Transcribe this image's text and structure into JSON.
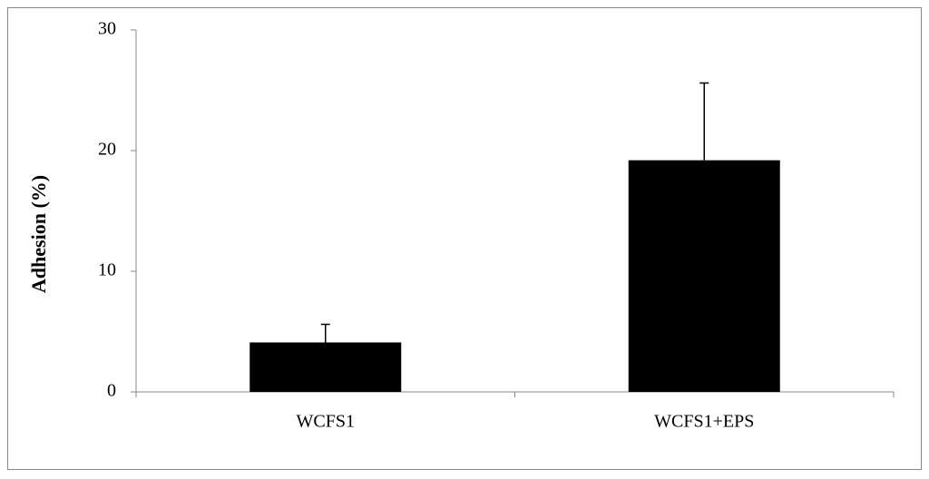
{
  "chart_data": {
    "type": "bar",
    "y_label": "Adhesion (%)",
    "categories": [
      "WCFS1",
      "WCFS1+EPS"
    ],
    "values": [
      4.1,
      19.2
    ],
    "errors": [
      1.5,
      6.4
    ],
    "color": "#000000",
    "ylim": [
      0,
      30
    ],
    "yticks": [
      0,
      10,
      20,
      30
    ]
  }
}
